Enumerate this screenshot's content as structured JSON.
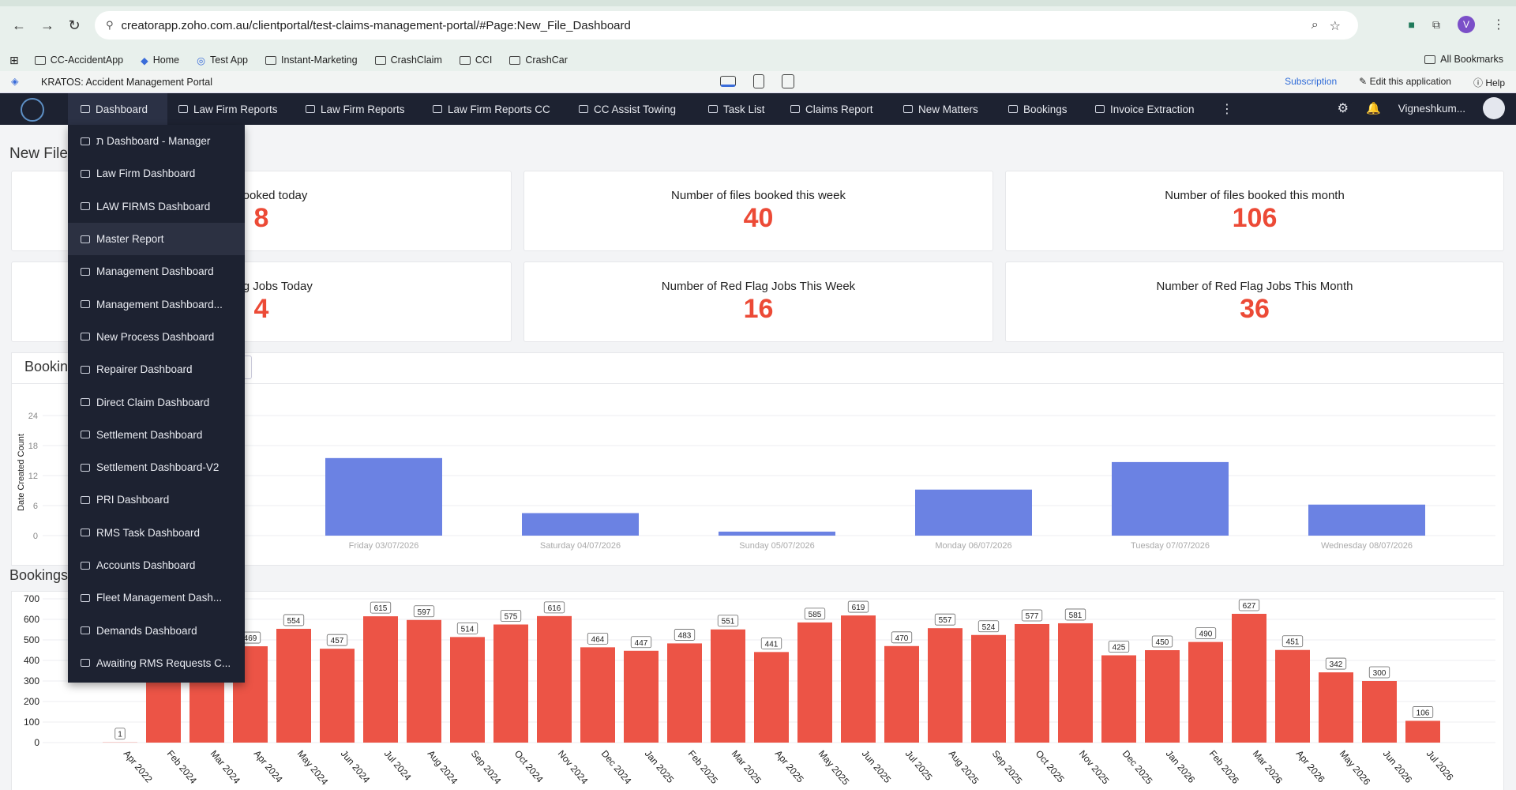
{
  "browser": {
    "url": "creatorapp.zoho.com.au/clientportal/test-claims-management-portal/#Page:New_File_Dashboard",
    "profile_initial": "V",
    "bookmarks": [
      "CC-AccidentApp",
      "Home",
      "Test App",
      "Instant-Marketing",
      "CrashClaim",
      "CCI",
      "CrashCar"
    ],
    "all_bookmarks": "All Bookmarks"
  },
  "app": {
    "title": "KRATOS: Accident Management Portal",
    "subscription": "Subscription",
    "edit_app": "Edit this application",
    "help": "Help"
  },
  "nav": {
    "items": [
      "Dashboard",
      "Law Firm Reports",
      "Law Firm Reports",
      "Law Firm Reports CC",
      "CC Assist Towing",
      "Task List",
      "Claims Report",
      "New Matters",
      "Bookings",
      "Invoice Extraction"
    ],
    "user": "Vigneshkum..."
  },
  "dropdown": {
    "items": [
      "ת Dashboard - Manager",
      "Law Firm Dashboard",
      "LAW FIRMS Dashboard",
      "Master Report",
      "Management Dashboard",
      "Management Dashboard...",
      "New Process Dashboard",
      "Repairer Dashboard",
      "Direct Claim Dashboard",
      "Settlement Dashboard",
      "Settlement Dashboard-V2",
      "PRI Dashboard",
      "RMS Task Dashboard",
      "Accounts Dashboard",
      "Fleet Management Dash...",
      "Demands Dashboard",
      "Awaiting RMS Requests C..."
    ]
  },
  "page": {
    "title_partial": "New File",
    "cards": [
      {
        "label": "iles booked today",
        "value": "8"
      },
      {
        "label": "Number of files booked this week",
        "value": "40"
      },
      {
        "label": "Number of files booked this month",
        "value": "106"
      },
      {
        "label": "ed Flag Jobs Today",
        "value": "4"
      },
      {
        "label": "Number of Red Flag Jobs This Week",
        "value": "16"
      },
      {
        "label": "Number of Red Flag Jobs This Month",
        "value": "36"
      }
    ],
    "section1_partial": "Booking",
    "section2_partial": "Bookings"
  },
  "chart_data": [
    {
      "type": "bar",
      "ylabel": "Date Created Count",
      "ylim": [
        0,
        24
      ],
      "yticks": [
        0,
        6,
        12,
        18,
        24
      ],
      "categories": [
        "Friday 03/07/2026",
        "Saturday 04/07/2026",
        "Sunday 05/07/2026",
        "Monday 06/07/2026",
        "Tuesday 07/07/2026",
        "Wednesday 08/07/2026"
      ],
      "values": [
        15.5,
        4.5,
        0.8,
        9.2,
        14.7,
        6.2
      ],
      "color": "#6b82e3"
    },
    {
      "type": "bar",
      "ylim": [
        0,
        700
      ],
      "yticks": [
        0,
        100,
        200,
        300,
        400,
        500,
        600,
        700
      ],
      "categories": [
        "Apr 2022",
        "Feb 2024",
        "Mar 2024",
        "Apr 2024",
        "May 2024",
        "Jun 2024",
        "Jul 2024",
        "Aug 2024",
        "Sep 2024",
        "Oct 2024",
        "Nov 2024",
        "Dec 2024",
        "Jan 2025",
        "Feb 2025",
        "Mar 2025",
        "Apr 2025",
        "May 2025",
        "Jun 2025",
        "Jul 2025",
        "Aug 2025",
        "Sep 2025",
        "Oct 2025",
        "Nov 2025",
        "Dec 2025",
        "Jan 2026",
        "Feb 2026",
        "Mar 2026",
        "Apr 2026",
        "May 2026",
        "Jun 2026",
        "Jul 2026"
      ],
      "category_labels": [
        "Apr 2022",
        "Feb 2024",
        "Mar 2024",
        "Apr 2024",
        "May 2024",
        "Jun 2024",
        "Jul 2024",
        "Aug 2024",
        "Sep 2024",
        "Oct 2024",
        "Nov 2024",
        "Dec 2024",
        "Jan 2025",
        "Feb 2025",
        "Mar 2025",
        "Apr 2025",
        "May 2025",
        "Jun 2025",
        "Jul 2025",
        "Aug 2025",
        "Sep 2025",
        "Oct 2025",
        "Nov 2025",
        "Dec 2025",
        "Jan 2026",
        "Feb 2026",
        "Mar 2026",
        "Apr 2026",
        "May 2026",
        "Jun 2026",
        "Jul 2026"
      ],
      "values": [
        1,
        470,
        470,
        469,
        554,
        457,
        615,
        597,
        514,
        575,
        616,
        464,
        447,
        483,
        551,
        441,
        585,
        619,
        470,
        557,
        524,
        577,
        581,
        425,
        450,
        490,
        627,
        451,
        342,
        300,
        106
      ],
      "data_labels": [
        "1",
        "",
        "",
        "469",
        "554",
        "457",
        "615",
        "597",
        "514",
        "575",
        "616",
        "464",
        "447",
        "483",
        "551",
        "441",
        "585",
        "619",
        "470",
        "557",
        "524",
        "577",
        "581",
        "425",
        "450",
        "490",
        "627",
        "451",
        "342",
        "300",
        "106"
      ],
      "color": "#ec5446"
    }
  ]
}
